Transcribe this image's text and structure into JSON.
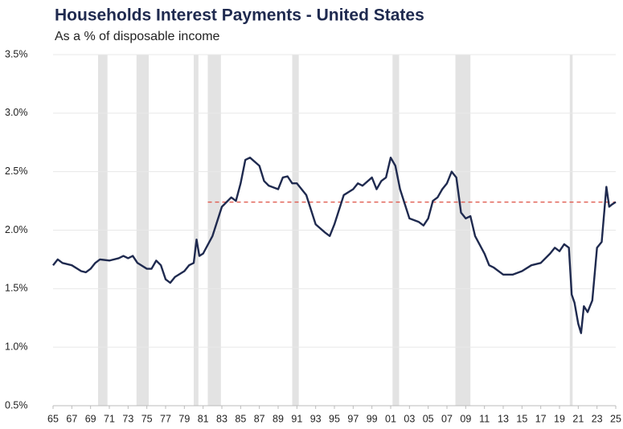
{
  "chart_data": {
    "type": "line",
    "title": "Households Interest Payments - United States",
    "subtitle": "As a % of disposable income",
    "series": [
      {
        "name": "Interest payments",
        "color": "#1f2a4f",
        "x": [
          1965,
          1965.5,
          1966,
          1967,
          1968,
          1968.5,
          1969,
          1969.5,
          1970,
          1971,
          1972,
          1972.5,
          1973,
          1973.5,
          1974,
          1975,
          1975.5,
          1976,
          1976.5,
          1977,
          1977.5,
          1978,
          1979,
          1979.5,
          1980,
          1980.3,
          1980.6,
          1981,
          1982,
          1983,
          1984,
          1984.5,
          1985,
          1985.5,
          1986,
          1987,
          1987.5,
          1988,
          1989,
          1989.5,
          1990,
          1990.5,
          1991,
          1992,
          1993,
          1994,
          1994.5,
          1995,
          1996,
          1997,
          1997.5,
          1998,
          1999,
          1999.5,
          2000,
          2000.5,
          2001,
          2001.5,
          2002,
          2003,
          2004,
          2004.5,
          2005,
          2005.5,
          2006,
          2006.5,
          2007,
          2007.5,
          2008,
          2008.5,
          2009,
          2009.5,
          2010,
          2011,
          2011.5,
          2012,
          2013,
          2014,
          2015,
          2016,
          2017,
          2018,
          2018.5,
          2019,
          2019.5,
          2020,
          2020.3,
          2020.6,
          2021,
          2021.3,
          2021.6,
          2022,
          2022.5,
          2023,
          2023.5,
          2024,
          2024.3,
          2024.6,
          2025
        ],
        "values": [
          1.7,
          1.75,
          1.72,
          1.7,
          1.65,
          1.64,
          1.67,
          1.72,
          1.75,
          1.74,
          1.76,
          1.78,
          1.76,
          1.78,
          1.72,
          1.67,
          1.67,
          1.74,
          1.7,
          1.58,
          1.55,
          1.6,
          1.65,
          1.7,
          1.72,
          1.92,
          1.78,
          1.8,
          1.95,
          2.2,
          2.28,
          2.25,
          2.4,
          2.6,
          2.62,
          2.55,
          2.42,
          2.38,
          2.35,
          2.45,
          2.46,
          2.4,
          2.4,
          2.3,
          2.05,
          1.98,
          1.95,
          2.05,
          2.3,
          2.35,
          2.4,
          2.38,
          2.45,
          2.35,
          2.42,
          2.45,
          2.62,
          2.55,
          2.35,
          2.1,
          2.07,
          2.04,
          2.1,
          2.25,
          2.28,
          2.35,
          2.4,
          2.5,
          2.45,
          2.15,
          2.1,
          2.12,
          1.95,
          1.8,
          1.7,
          1.68,
          1.62,
          1.62,
          1.65,
          1.7,
          1.72,
          1.8,
          1.85,
          1.82,
          1.88,
          1.85,
          1.45,
          1.38,
          1.2,
          1.12,
          1.35,
          1.3,
          1.4,
          1.85,
          1.9,
          2.37,
          2.2,
          2.22,
          2.24
        ]
      }
    ],
    "reference_line": {
      "value": 2.24,
      "color": "#e05a4f",
      "x": [
        1981.5,
        2025
      ]
    },
    "recessions": [
      [
        1969.8,
        1970.8
      ],
      [
        1973.9,
        1975.2
      ],
      [
        1980.0,
        1980.5
      ],
      [
        1981.5,
        1982.9
      ],
      [
        1990.5,
        1991.2
      ],
      [
        2001.2,
        2001.9
      ],
      [
        2007.9,
        2009.5
      ],
      [
        2020.1,
        2020.4
      ]
    ],
    "xlim": [
      1965,
      2025
    ],
    "xticks": [
      {
        "value": 1965,
        "label": "65"
      },
      {
        "value": 1967,
        "label": "67"
      },
      {
        "value": 1969,
        "label": "69"
      },
      {
        "value": 1971,
        "label": "71"
      },
      {
        "value": 1973,
        "label": "73"
      },
      {
        "value": 1975,
        "label": "75"
      },
      {
        "value": 1977,
        "label": "77"
      },
      {
        "value": 1979,
        "label": "79"
      },
      {
        "value": 1981,
        "label": "81"
      },
      {
        "value": 1983,
        "label": "83"
      },
      {
        "value": 1985,
        "label": "85"
      },
      {
        "value": 1987,
        "label": "87"
      },
      {
        "value": 1989,
        "label": "89"
      },
      {
        "value": 1991,
        "label": "91"
      },
      {
        "value": 1993,
        "label": "93"
      },
      {
        "value": 1995,
        "label": "95"
      },
      {
        "value": 1997,
        "label": "97"
      },
      {
        "value": 1999,
        "label": "99"
      },
      {
        "value": 2001,
        "label": "01"
      },
      {
        "value": 2003,
        "label": "03"
      },
      {
        "value": 2005,
        "label": "05"
      },
      {
        "value": 2007,
        "label": "07"
      },
      {
        "value": 2009,
        "label": "09"
      },
      {
        "value": 2011,
        "label": "11"
      },
      {
        "value": 2013,
        "label": "13"
      },
      {
        "value": 2015,
        "label": "15"
      },
      {
        "value": 2017,
        "label": "17"
      },
      {
        "value": 2019,
        "label": "19"
      },
      {
        "value": 2021,
        "label": "21"
      },
      {
        "value": 2023,
        "label": "23"
      },
      {
        "value": 2025,
        "label": "25"
      }
    ],
    "ylim": [
      0.5,
      3.5
    ],
    "yticks": [
      {
        "value": 0.5,
        "label": "0.5%"
      },
      {
        "value": 1.0,
        "label": "1.0%"
      },
      {
        "value": 1.5,
        "label": "1.5%"
      },
      {
        "value": 2.0,
        "label": "2.0%"
      },
      {
        "value": 2.5,
        "label": "2.5%"
      },
      {
        "value": 3.0,
        "label": "3.0%"
      },
      {
        "value": 3.5,
        "label": "3.5%"
      }
    ],
    "grid": true
  }
}
